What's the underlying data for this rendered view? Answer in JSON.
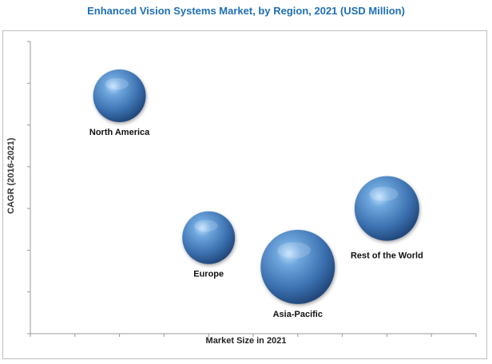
{
  "chart_data": {
    "type": "bubble",
    "title": "Enhanced Vision Systems Market, by Region, 2021 (USD Million)",
    "xlabel": "Market Size in 2021",
    "ylabel": "CAGR (2016-2021)",
    "xlim": [
      0,
      10
    ],
    "ylim": [
      0,
      7
    ],
    "grid": false,
    "tick_labels_shown": false,
    "points": [
      {
        "label": "North America",
        "x": 2,
        "y": 5.7,
        "size": 4.4
      },
      {
        "label": "Europe",
        "x": 4.0,
        "y": 2.3,
        "size": 4.4
      },
      {
        "label": "Asia-Pacific",
        "x": 6.0,
        "y": 1.6,
        "size": 6.2
      },
      {
        "label": "Rest of the World",
        "x": 8.0,
        "y": 3.0,
        "size": 5.4
      }
    ],
    "bubble_color": "#3e7fc1"
  }
}
